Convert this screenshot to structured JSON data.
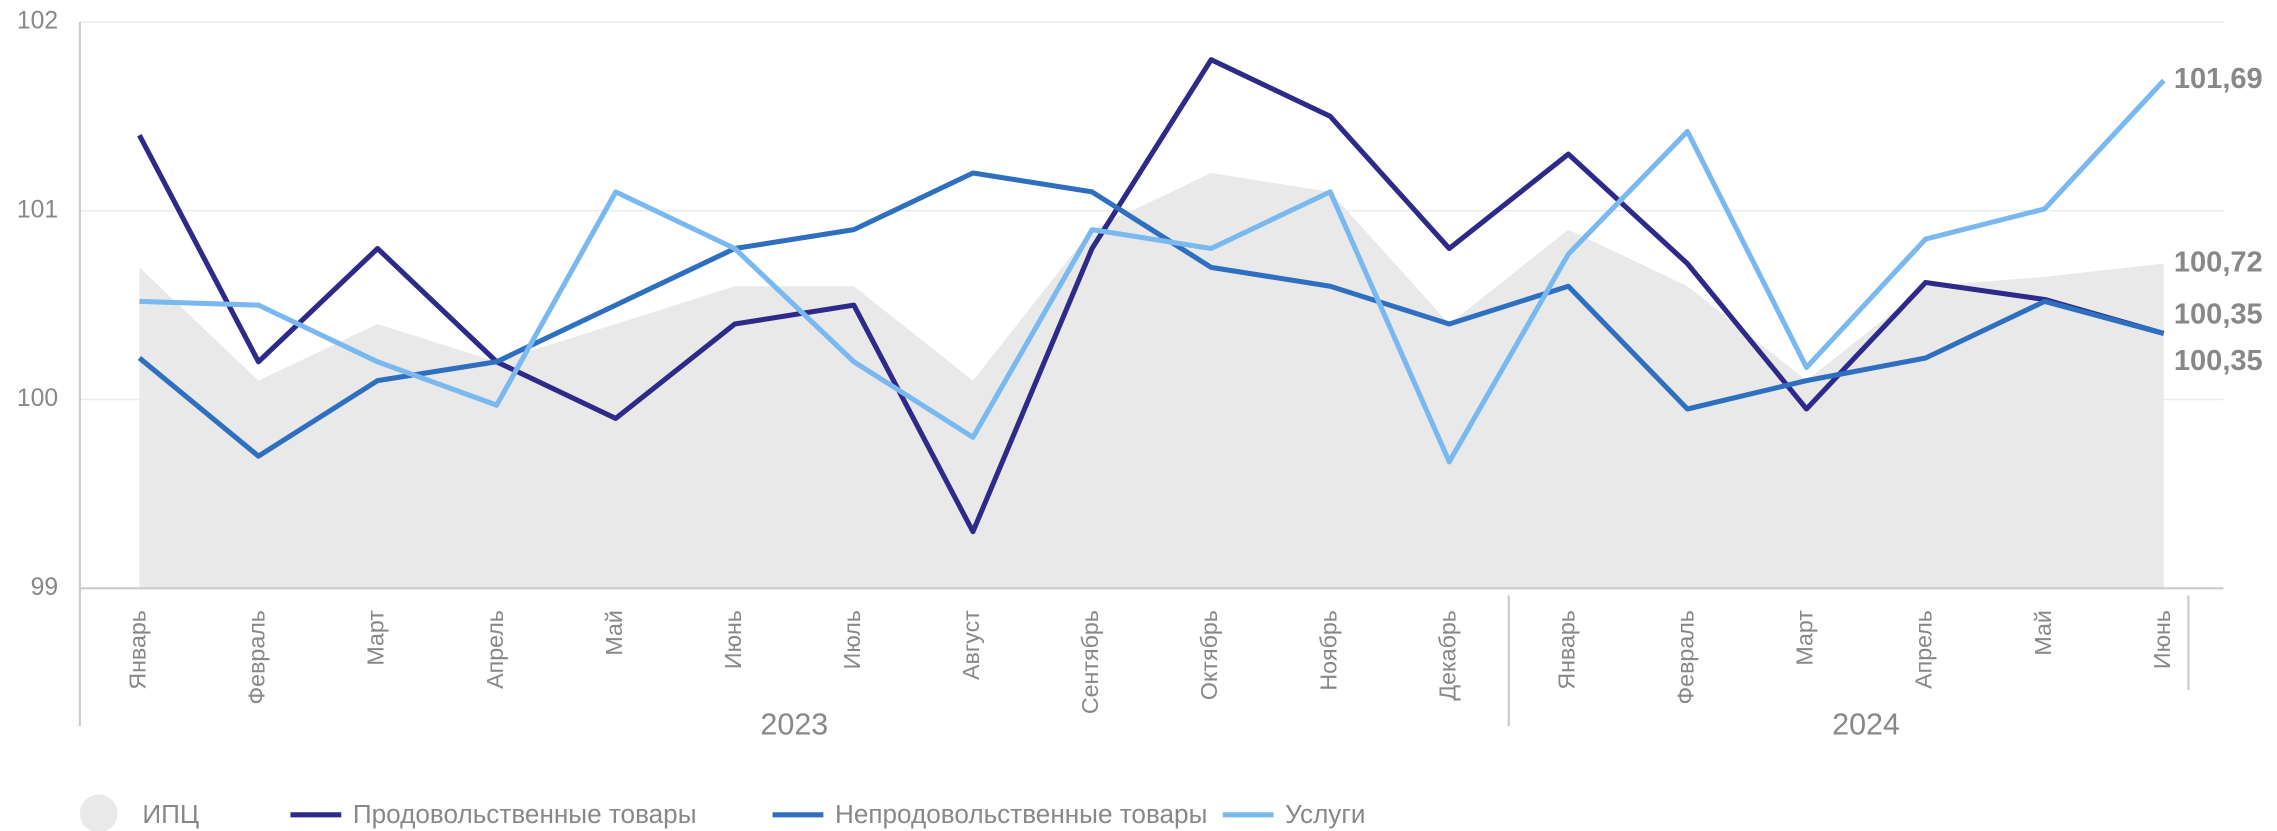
{
  "chart_data": {
    "type": "line",
    "categories": [
      "Январь",
      "Февраль",
      "Март",
      "Апрель",
      "Май",
      "Июнь",
      "Июль",
      "Август",
      "Сентябрь",
      "Октябрь",
      "Ноябрь",
      "Декабрь",
      "Январь",
      "Февраль",
      "Март",
      "Апрель",
      "Май",
      "Июнь"
    ],
    "year_groups": [
      {
        "label": "2023",
        "count": 12
      },
      {
        "label": "2024",
        "count": 6
      }
    ],
    "ylim": [
      99,
      102
    ],
    "yticks": [
      99,
      100,
      101,
      102
    ],
    "grid": true,
    "series": [
      {
        "name": "ИПЦ",
        "kind": "area",
        "color": "#e9e9e9",
        "label_color": "#bdbdbd",
        "values": [
          100.7,
          100.1,
          100.4,
          100.2,
          100.4,
          100.6,
          100.6,
          100.1,
          100.9,
          101.2,
          101.1,
          100.4,
          100.9,
          100.6,
          100.1,
          100.6,
          100.65,
          100.72
        ],
        "value_labels": [
          null,
          null,
          null,
          null,
          null,
          null,
          null,
          null,
          null,
          null,
          null,
          null,
          null,
          null,
          null,
          null,
          null,
          "100,72"
        ]
      },
      {
        "name": "Продовольственные товары",
        "kind": "line",
        "color": "#2e2a8a",
        "label_color": "#2e2a8a",
        "values": [
          101.4,
          100.2,
          100.8,
          100.2,
          99.9,
          100.4,
          100.5,
          99.3,
          100.8,
          101.8,
          101.5,
          100.8,
          101.3,
          100.72,
          99.95,
          100.62,
          100.53,
          100.35
        ],
        "value_labels": [
          null,
          null,
          null,
          null,
          null,
          null,
          null,
          null,
          null,
          null,
          null,
          null,
          null,
          null,
          null,
          null,
          null,
          "100,35"
        ]
      },
      {
        "name": "Непродовольственные товары",
        "kind": "line",
        "color": "#2f6fc0",
        "label_color": "#2f6fc0",
        "values": [
          100.22,
          99.7,
          100.1,
          100.2,
          100.5,
          100.8,
          100.9,
          101.2,
          101.1,
          100.7,
          100.6,
          100.4,
          100.6,
          99.95,
          100.1,
          100.22,
          100.52,
          100.35
        ],
        "value_labels": [
          null,
          null,
          null,
          null,
          null,
          null,
          null,
          null,
          null,
          null,
          null,
          null,
          null,
          null,
          null,
          null,
          null,
          "100,35"
        ]
      },
      {
        "name": "Услуги",
        "kind": "line",
        "color": "#7ab8f0",
        "label_color": "#7ab8f0",
        "values": [
          100.52,
          100.5,
          100.2,
          99.97,
          101.1,
          100.8,
          100.2,
          99.8,
          100.9,
          100.8,
          101.1,
          99.67,
          100.77,
          101.42,
          100.17,
          100.85,
          101.01,
          101.69
        ],
        "value_labels": [
          null,
          null,
          null,
          null,
          null,
          null,
          null,
          null,
          null,
          null,
          null,
          null,
          null,
          null,
          null,
          null,
          null,
          "101,69"
        ]
      }
    ]
  }
}
